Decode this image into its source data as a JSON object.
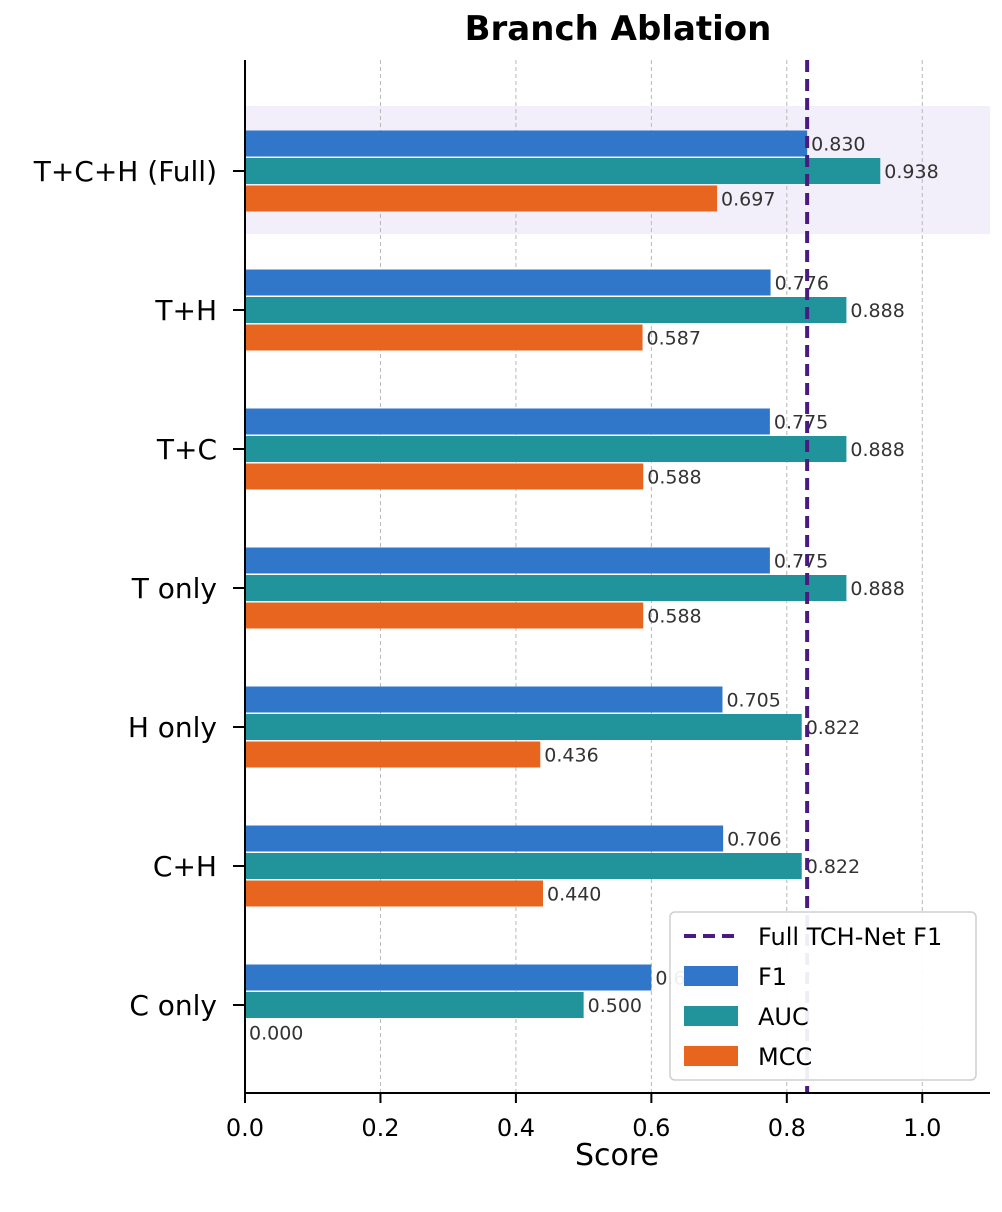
{
  "chart_data": {
    "type": "bar",
    "orientation": "horizontal",
    "title": "Branch Ablation",
    "xlabel": "Score",
    "ylabel": "",
    "xlim": [
      0,
      1.1
    ],
    "xticks": [
      "0.0",
      "0.2",
      "0.4",
      "0.6",
      "0.8",
      "1.0"
    ],
    "grid": "x-dashed",
    "legend_position": "lower-right",
    "categories": [
      "T+C+H (Full)",
      "T+H",
      "T+C",
      "T only",
      "H only",
      "C+H",
      "C only"
    ],
    "highlighted_category": "T+C+H (Full)",
    "series": [
      {
        "name": "F1",
        "color": "#3077c9",
        "values": [
          0.83,
          0.776,
          0.775,
          0.775,
          0.705,
          0.706,
          0.6
        ],
        "labels": [
          "0.830",
          "0.776",
          "0.775",
          "0.775",
          "0.705",
          "0.706",
          "0.600"
        ]
      },
      {
        "name": "AUC",
        "color": "#21949b",
        "values": [
          0.938,
          0.888,
          0.888,
          0.888,
          0.822,
          0.822,
          0.5
        ],
        "labels": [
          "0.938",
          "0.888",
          "0.888",
          "0.888",
          "0.822",
          "0.822",
          "0.500"
        ]
      },
      {
        "name": "MCC",
        "color": "#e8651f",
        "values": [
          0.697,
          0.587,
          0.588,
          0.588,
          0.436,
          0.44,
          0.0
        ],
        "labels": [
          "0.697",
          "0.587",
          "0.588",
          "0.588",
          "0.436",
          "0.440",
          "0.000"
        ]
      }
    ],
    "reference_line": {
      "name": "Full TCH-Net F1",
      "value": 0.83,
      "color": "#4b1a80",
      "style": "dashed"
    }
  }
}
